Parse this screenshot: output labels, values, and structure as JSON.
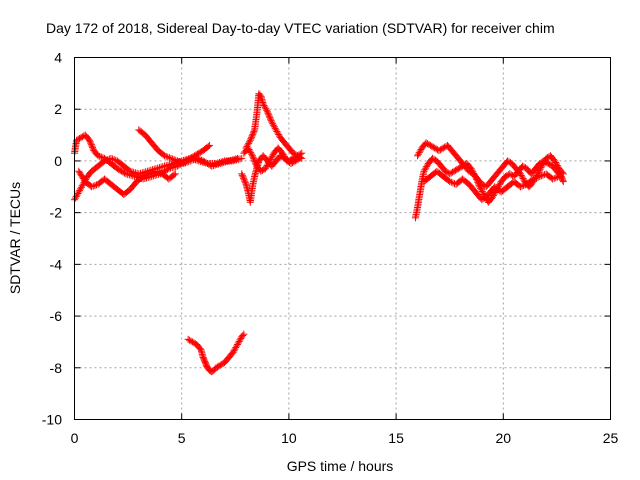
{
  "chart_data": {
    "type": "scatter",
    "title": "Day 172 of 2018, Sidereal Day-to-day VTEC variation (SDTVAR) for receiver chim",
    "xlabel": "GPS time / hours",
    "ylabel": "SDTVAR / TECUs",
    "xlim": [
      0,
      25
    ],
    "ylim": [
      -10,
      4
    ],
    "xticks": [
      0,
      5,
      10,
      15,
      20,
      25
    ],
    "yticks": [
      -10,
      -8,
      -6,
      -4,
      -2,
      0,
      2,
      4
    ],
    "xtick_labels": [
      "0",
      "5",
      "10",
      "15",
      "20",
      "25"
    ],
    "ytick_labels": [
      "-10",
      "-8",
      "-6",
      "-4",
      "-2",
      "0",
      "2",
      "4"
    ],
    "grid": true,
    "marker": "+",
    "series": [
      {
        "name": "SDTVAR",
        "color": "#ff0000",
        "tracks": [
          [
            [
              0.0,
              0.3
            ],
            [
              0.1,
              0.8
            ],
            [
              0.3,
              0.9
            ],
            [
              0.5,
              1.0
            ],
            [
              0.7,
              0.8
            ],
            [
              0.9,
              0.4
            ],
            [
              1.1,
              0.2
            ],
            [
              1.4,
              0.1
            ],
            [
              1.7,
              -0.1
            ],
            [
              2.0,
              -0.3
            ],
            [
              2.4,
              -0.5
            ],
            [
              2.8,
              -0.6
            ],
            [
              3.2,
              -0.7
            ],
            [
              3.6,
              -0.6
            ],
            [
              4.0,
              -0.5
            ],
            [
              4.4,
              -0.3
            ],
            [
              4.8,
              -0.2
            ],
            [
              5.2,
              0.0
            ],
            [
              5.6,
              0.2
            ],
            [
              6.0,
              0.4
            ],
            [
              6.3,
              0.6
            ]
          ],
          [
            [
              0.0,
              -1.5
            ],
            [
              0.2,
              -1.2
            ],
            [
              0.4,
              -0.9
            ],
            [
              0.6,
              -0.6
            ],
            [
              0.8,
              -0.4
            ],
            [
              1.1,
              -0.2
            ],
            [
              1.4,
              0.0
            ],
            [
              1.7,
              0.1
            ],
            [
              2.0,
              0.0
            ],
            [
              2.3,
              -0.2
            ],
            [
              2.6,
              -0.4
            ],
            [
              3.0,
              -0.5
            ],
            [
              3.4,
              -0.4
            ],
            [
              3.8,
              -0.3
            ],
            [
              4.2,
              -0.2
            ],
            [
              4.6,
              -0.1
            ],
            [
              5.0,
              0.0
            ],
            [
              5.4,
              0.1
            ],
            [
              5.8,
              0.0
            ],
            [
              6.2,
              -0.1
            ],
            [
              6.6,
              -0.1
            ],
            [
              7.0,
              0.0
            ],
            [
              7.4,
              0.0
            ],
            [
              7.8,
              0.1
            ]
          ],
          [
            [
              0.2,
              -0.4
            ],
            [
              0.5,
              -0.8
            ],
            [
              0.8,
              -1.0
            ],
            [
              1.1,
              -0.9
            ],
            [
              1.4,
              -0.7
            ],
            [
              1.7,
              -0.9
            ],
            [
              2.0,
              -1.1
            ],
            [
              2.3,
              -1.3
            ],
            [
              2.6,
              -1.1
            ],
            [
              2.9,
              -0.8
            ],
            [
              3.2,
              -0.6
            ],
            [
              3.5,
              -0.5
            ],
            [
              3.8,
              -0.4
            ],
            [
              4.1,
              -0.5
            ],
            [
              4.4,
              -0.7
            ],
            [
              4.7,
              -0.5
            ]
          ],
          [
            [
              3.0,
              1.2
            ],
            [
              3.3,
              1.0
            ],
            [
              3.6,
              0.7
            ],
            [
              3.9,
              0.4
            ],
            [
              4.2,
              0.2
            ],
            [
              4.5,
              0.1
            ],
            [
              4.8,
              0.0
            ],
            [
              5.1,
              -0.1
            ],
            [
              5.4,
              0.0
            ],
            [
              5.7,
              0.1
            ],
            [
              6.0,
              0.0
            ],
            [
              6.4,
              -0.2
            ],
            [
              6.8,
              -0.1
            ],
            [
              7.2,
              0.0
            ],
            [
              7.6,
              0.1
            ]
          ],
          [
            [
              7.8,
              -0.5
            ],
            [
              8.0,
              -0.9
            ],
            [
              8.1,
              -1.2
            ],
            [
              8.2,
              -1.6
            ],
            [
              8.3,
              -1.0
            ],
            [
              8.4,
              -0.6
            ],
            [
              8.5,
              -0.3
            ],
            [
              8.6,
              0.0
            ],
            [
              8.8,
              0.2
            ],
            [
              9.0,
              0.0
            ],
            [
              9.2,
              -0.2
            ],
            [
              9.4,
              0.0
            ],
            [
              9.6,
              0.2
            ],
            [
              9.8,
              0.1
            ],
            [
              10.0,
              0.0
            ],
            [
              10.2,
              0.1
            ],
            [
              10.4,
              0.2
            ],
            [
              10.6,
              0.1
            ]
          ],
          [
            [
              8.0,
              0.5
            ],
            [
              8.2,
              0.8
            ],
            [
              8.4,
              1.2
            ],
            [
              8.5,
              1.8
            ],
            [
              8.6,
              2.6
            ],
            [
              8.7,
              2.5
            ],
            [
              8.8,
              2.2
            ],
            [
              9.0,
              1.9
            ],
            [
              9.2,
              1.5
            ],
            [
              9.4,
              1.2
            ],
            [
              9.6,
              0.9
            ],
            [
              9.8,
              0.7
            ],
            [
              10.0,
              0.5
            ],
            [
              10.2,
              0.3
            ],
            [
              10.4,
              0.2
            ],
            [
              10.6,
              0.3
            ]
          ],
          [
            [
              7.9,
              0.3
            ],
            [
              8.1,
              0.5
            ],
            [
              8.3,
              0.2
            ],
            [
              8.5,
              -0.2
            ],
            [
              8.7,
              -0.4
            ],
            [
              8.9,
              -0.3
            ],
            [
              9.1,
              0.0
            ],
            [
              9.3,
              0.3
            ],
            [
              9.5,
              0.5
            ],
            [
              9.7,
              0.3
            ],
            [
              9.9,
              0.0
            ],
            [
              10.1,
              -0.1
            ],
            [
              10.3,
              0.0
            ],
            [
              10.5,
              0.1
            ]
          ],
          [
            [
              5.3,
              -6.9
            ],
            [
              5.5,
              -7.0
            ],
            [
              5.7,
              -7.1
            ],
            [
              5.9,
              -7.3
            ],
            [
              6.0,
              -7.6
            ],
            [
              6.1,
              -7.8
            ],
            [
              6.2,
              -8.0
            ],
            [
              6.3,
              -8.1
            ],
            [
              6.4,
              -8.15
            ],
            [
              6.5,
              -8.1
            ],
            [
              6.6,
              -8.0
            ],
            [
              6.8,
              -7.9
            ],
            [
              7.0,
              -7.8
            ],
            [
              7.2,
              -7.6
            ],
            [
              7.4,
              -7.4
            ],
            [
              7.6,
              -7.1
            ],
            [
              7.8,
              -6.8
            ],
            [
              7.9,
              -6.7
            ]
          ],
          [
            [
              15.9,
              -2.2
            ],
            [
              16.0,
              -1.8
            ],
            [
              16.1,
              -1.3
            ],
            [
              16.2,
              -0.8
            ],
            [
              16.3,
              -0.4
            ],
            [
              16.5,
              -0.1
            ],
            [
              16.7,
              0.1
            ],
            [
              16.9,
              0.0
            ],
            [
              17.1,
              -0.2
            ],
            [
              17.3,
              -0.4
            ],
            [
              17.5,
              -0.5
            ],
            [
              17.7,
              -0.4
            ],
            [
              17.9,
              -0.3
            ],
            [
              18.1,
              -0.2
            ],
            [
              18.3,
              -0.1
            ],
            [
              18.5,
              -0.3
            ],
            [
              18.7,
              -0.6
            ],
            [
              18.9,
              -1.0
            ],
            [
              19.1,
              -1.3
            ],
            [
              19.3,
              -1.6
            ],
            [
              19.5,
              -1.4
            ],
            [
              19.7,
              -1.1
            ],
            [
              19.9,
              -0.8
            ],
            [
              20.1,
              -0.6
            ],
            [
              20.3,
              -0.5
            ],
            [
              20.5,
              -0.6
            ],
            [
              20.7,
              -0.4
            ],
            [
              20.9,
              -0.2
            ],
            [
              21.1,
              -0.3
            ],
            [
              21.3,
              -0.5
            ],
            [
              21.5,
              -0.3
            ],
            [
              21.7,
              -0.1
            ],
            [
              21.9,
              0.0
            ],
            [
              22.1,
              -0.1
            ],
            [
              22.3,
              -0.2
            ],
            [
              22.5,
              -0.4
            ],
            [
              22.7,
              -0.6
            ],
            [
              22.8,
              -0.8
            ]
          ],
          [
            [
              16.0,
              0.2
            ],
            [
              16.2,
              0.5
            ],
            [
              16.4,
              0.7
            ],
            [
              16.6,
              0.6
            ],
            [
              16.8,
              0.5
            ],
            [
              17.0,
              0.4
            ],
            [
              17.2,
              0.5
            ],
            [
              17.4,
              0.6
            ],
            [
              17.6,
              0.4
            ],
            [
              17.8,
              0.2
            ],
            [
              18.0,
              0.0
            ],
            [
              18.2,
              -0.2
            ],
            [
              18.4,
              -0.4
            ],
            [
              18.6,
              -0.5
            ],
            [
              18.8,
              -0.7
            ],
            [
              19.0,
              -0.9
            ],
            [
              19.2,
              -1.0
            ],
            [
              19.4,
              -0.8
            ],
            [
              19.6,
              -0.6
            ],
            [
              19.8,
              -0.4
            ],
            [
              20.0,
              -0.2
            ],
            [
              20.2,
              0.0
            ],
            [
              20.4,
              -0.1
            ],
            [
              20.6,
              -0.3
            ],
            [
              20.8,
              -0.5
            ],
            [
              21.0,
              -0.8
            ],
            [
              21.2,
              -1.0
            ],
            [
              21.4,
              -0.8
            ],
            [
              21.6,
              -0.5
            ],
            [
              21.8,
              -0.2
            ],
            [
              22.0,
              0.1
            ],
            [
              22.2,
              0.2
            ],
            [
              22.4,
              0.0
            ],
            [
              22.6,
              -0.3
            ],
            [
              22.8,
              -0.5
            ]
          ],
          [
            [
              16.3,
              -0.8
            ],
            [
              16.6,
              -0.6
            ],
            [
              16.9,
              -0.4
            ],
            [
              17.2,
              -0.6
            ],
            [
              17.5,
              -0.8
            ],
            [
              17.8,
              -0.9
            ],
            [
              18.1,
              -0.7
            ],
            [
              18.4,
              -0.9
            ],
            [
              18.7,
              -1.2
            ],
            [
              19.0,
              -1.5
            ],
            [
              19.3,
              -1.3
            ],
            [
              19.6,
              -1.0
            ],
            [
              19.9,
              -1.2
            ],
            [
              20.2,
              -1.0
            ],
            [
              20.5,
              -0.8
            ],
            [
              20.8,
              -1.0
            ],
            [
              21.1,
              -0.9
            ],
            [
              21.4,
              -0.7
            ],
            [
              21.7,
              -0.6
            ],
            [
              22.0,
              -0.5
            ],
            [
              22.3,
              -0.7
            ],
            [
              22.6,
              -0.6
            ]
          ]
        ]
      }
    ]
  }
}
